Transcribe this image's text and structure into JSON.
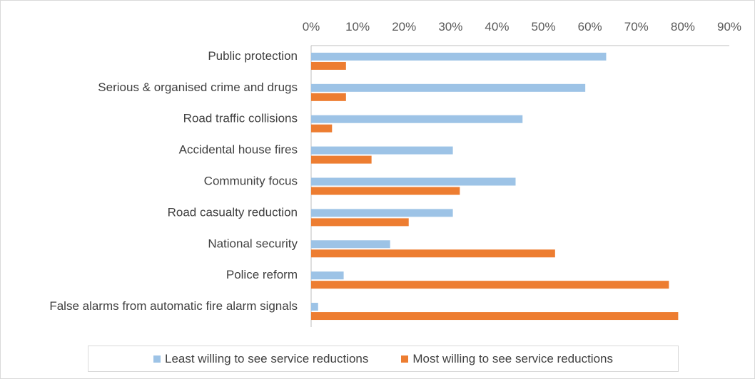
{
  "chart_data": {
    "type": "bar",
    "orientation": "horizontal",
    "categories": [
      "Public protection",
      "Serious & organised crime and drugs",
      "Road traffic collisions",
      "Accidental house fires",
      "Community focus",
      "Road casualty reduction",
      "National security",
      "Police reform",
      "False alarms from automatic fire alarm signals"
    ],
    "series": [
      {
        "name": "Least willing to see service reductions",
        "color": "#9dc3e6",
        "values": [
          63.5,
          59,
          45.5,
          30.5,
          44,
          30.5,
          17,
          7,
          1.5
        ]
      },
      {
        "name": "Most willing to see service reductions",
        "color": "#ed7d31",
        "values": [
          7.5,
          7.5,
          4.5,
          13,
          32,
          21,
          52.5,
          77,
          79
        ]
      }
    ],
    "xlim": [
      0,
      90
    ],
    "xticks": [
      "0%",
      "10%",
      "20%",
      "30%",
      "40%",
      "50%",
      "60%",
      "70%",
      "80%",
      "90%"
    ],
    "x_axis_position": "top",
    "grid": false,
    "legend_position": "bottom"
  }
}
